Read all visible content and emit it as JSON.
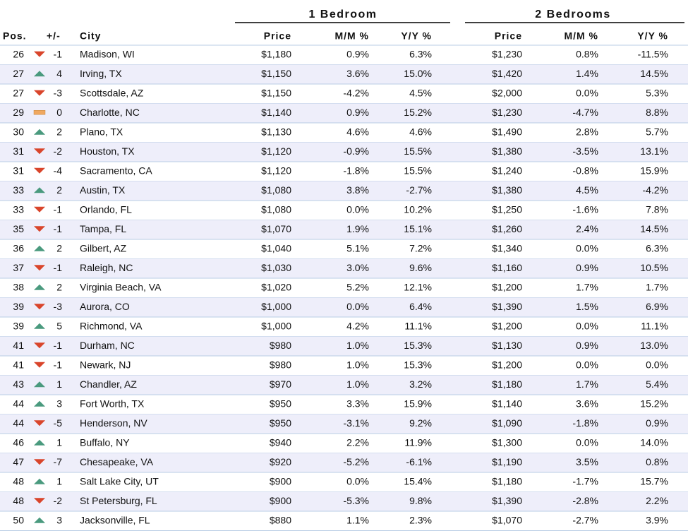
{
  "table": {
    "groups": [
      "1 Bedroom",
      "2 Bedrooms"
    ],
    "columns": [
      "Pos.",
      "+/-",
      "City",
      "Price",
      "M/M %",
      "Y/Y %",
      "Price",
      "M/M %",
      "Y/Y %"
    ],
    "rows": [
      [
        "26",
        "-1",
        "Madison, WI",
        "$1,180",
        "0.9%",
        "6.3%",
        "$1,230",
        "0.8%",
        "-11.5%"
      ],
      [
        "27",
        "4",
        "Irving, TX",
        "$1,150",
        "3.6%",
        "15.0%",
        "$1,420",
        "1.4%",
        "14.5%"
      ],
      [
        "27",
        "-3",
        "Scottsdale, AZ",
        "$1,150",
        "-4.2%",
        "4.5%",
        "$2,000",
        "0.0%",
        "5.3%"
      ],
      [
        "29",
        "0",
        "Charlotte, NC",
        "$1,140",
        "0.9%",
        "15.2%",
        "$1,230",
        "-4.7%",
        "8.8%"
      ],
      [
        "30",
        "2",
        "Plano, TX",
        "$1,130",
        "4.6%",
        "4.6%",
        "$1,490",
        "2.8%",
        "5.7%"
      ],
      [
        "31",
        "-2",
        "Houston, TX",
        "$1,120",
        "-0.9%",
        "15.5%",
        "$1,380",
        "-3.5%",
        "13.1%"
      ],
      [
        "31",
        "-4",
        "Sacramento, CA",
        "$1,120",
        "-1.8%",
        "15.5%",
        "$1,240",
        "-0.8%",
        "15.9%"
      ],
      [
        "33",
        "2",
        "Austin, TX",
        "$1,080",
        "3.8%",
        "-2.7%",
        "$1,380",
        "4.5%",
        "-4.2%"
      ],
      [
        "33",
        "-1",
        "Orlando, FL",
        "$1,080",
        "0.0%",
        "10.2%",
        "$1,250",
        "-1.6%",
        "7.8%"
      ],
      [
        "35",
        "-1",
        "Tampa, FL",
        "$1,070",
        "1.9%",
        "15.1%",
        "$1,260",
        "2.4%",
        "14.5%"
      ],
      [
        "36",
        "2",
        "Gilbert, AZ",
        "$1,040",
        "5.1%",
        "7.2%",
        "$1,340",
        "0.0%",
        "6.3%"
      ],
      [
        "37",
        "-1",
        "Raleigh, NC",
        "$1,030",
        "3.0%",
        "9.6%",
        "$1,160",
        "0.9%",
        "10.5%"
      ],
      [
        "38",
        "2",
        "Virginia Beach, VA",
        "$1,020",
        "5.2%",
        "12.1%",
        "$1,200",
        "1.7%",
        "1.7%"
      ],
      [
        "39",
        "-3",
        "Aurora, CO",
        "$1,000",
        "0.0%",
        "6.4%",
        "$1,390",
        "1.5%",
        "6.9%"
      ],
      [
        "39",
        "5",
        "Richmond, VA",
        "$1,000",
        "4.2%",
        "11.1%",
        "$1,200",
        "0.0%",
        "11.1%"
      ],
      [
        "41",
        "-1",
        "Durham, NC",
        "$980",
        "1.0%",
        "15.3%",
        "$1,130",
        "0.9%",
        "13.0%"
      ],
      [
        "41",
        "-1",
        "Newark, NJ",
        "$980",
        "1.0%",
        "15.3%",
        "$1,200",
        "0.0%",
        "0.0%"
      ],
      [
        "43",
        "1",
        "Chandler, AZ",
        "$970",
        "1.0%",
        "3.2%",
        "$1,180",
        "1.7%",
        "5.4%"
      ],
      [
        "44",
        "3",
        "Fort Worth, TX",
        "$950",
        "3.3%",
        "15.9%",
        "$1,140",
        "3.6%",
        "15.2%"
      ],
      [
        "44",
        "-5",
        "Henderson, NV",
        "$950",
        "-3.1%",
        "9.2%",
        "$1,090",
        "-1.8%",
        "0.9%"
      ],
      [
        "46",
        "1",
        "Buffalo, NY",
        "$940",
        "2.2%",
        "11.9%",
        "$1,300",
        "0.0%",
        "14.0%"
      ],
      [
        "47",
        "-7",
        "Chesapeake, VA",
        "$920",
        "-5.2%",
        "-6.1%",
        "$1,190",
        "3.5%",
        "0.8%"
      ],
      [
        "48",
        "1",
        "Salt Lake City, UT",
        "$900",
        "0.0%",
        "15.4%",
        "$1,180",
        "-1.7%",
        "15.7%"
      ],
      [
        "48",
        "-2",
        "St Petersburg, FL",
        "$900",
        "-5.3%",
        "9.8%",
        "$1,390",
        "-2.8%",
        "2.2%"
      ],
      [
        "50",
        "3",
        "Jacksonville, FL",
        "$880",
        "1.1%",
        "2.3%",
        "$1,070",
        "-2.7%",
        "3.9%"
      ]
    ]
  }
}
